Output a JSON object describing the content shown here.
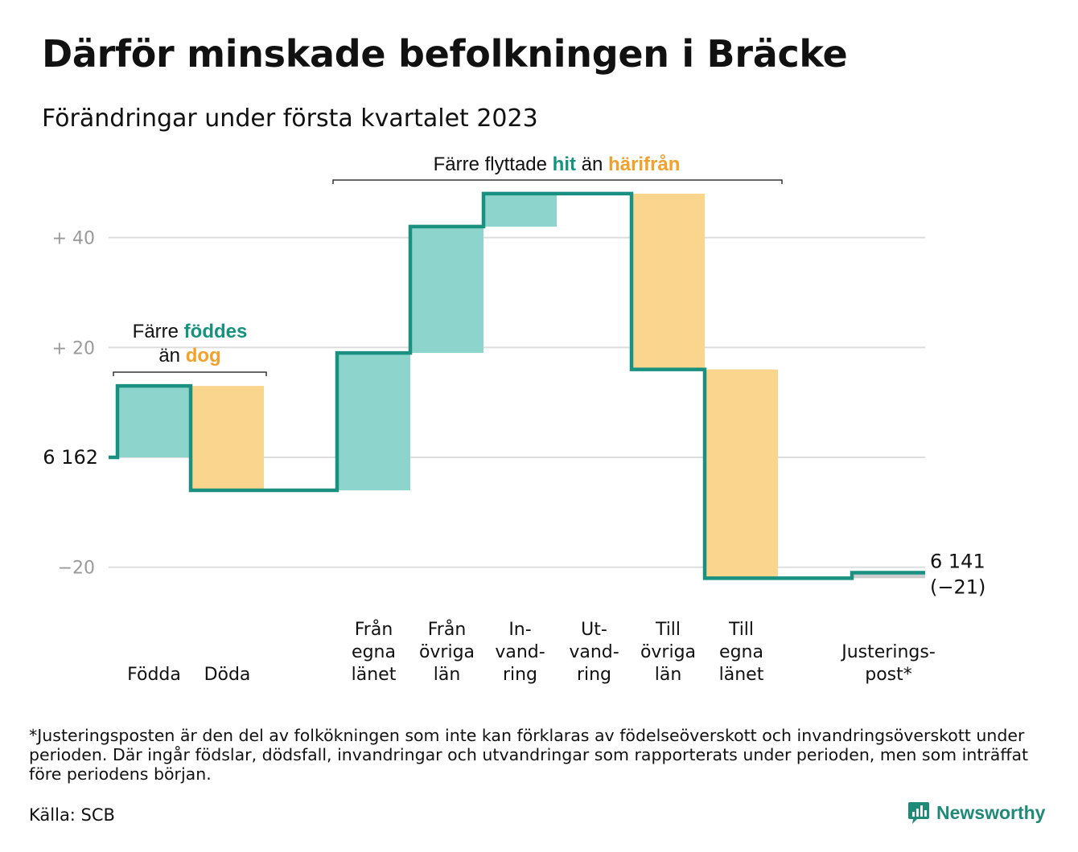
{
  "header": {
    "title": "Därför minskade befolkningen i Bräcke",
    "subtitle": "Förändringar under första kvartalet 2023"
  },
  "chart_data": {
    "type": "waterfall",
    "start_value": 6162,
    "start_label": "6 162",
    "end_value": 6141,
    "end_label": "6 141",
    "end_change_label": "(−21)",
    "y_ticks": [
      {
        "value": 40,
        "label": "+ 40"
      },
      {
        "value": 20,
        "label": "+ 20"
      },
      {
        "value": 0,
        "label": ""
      },
      {
        "value": -20,
        "label": "−20"
      }
    ],
    "ylim": [
      -22,
      48
    ],
    "steps": [
      {
        "label_lines": [
          "Födda"
        ],
        "change": 13,
        "kind": "increase"
      },
      {
        "label_lines": [
          "Döda"
        ],
        "change": -19,
        "kind": "decrease"
      },
      {
        "label_lines": [
          "Från",
          "egna",
          "länet"
        ],
        "change": 25,
        "kind": "increase"
      },
      {
        "label_lines": [
          "Från",
          "övriga",
          "län"
        ],
        "change": 23,
        "kind": "increase"
      },
      {
        "label_lines": [
          "In-",
          "vand-",
          "ring"
        ],
        "change": 6,
        "kind": "increase"
      },
      {
        "label_lines": [
          "Ut-",
          "vand-",
          "ring"
        ],
        "change": 0,
        "kind": "decrease"
      },
      {
        "label_lines": [
          "Till",
          "övriga",
          "län"
        ],
        "change": -32,
        "kind": "decrease"
      },
      {
        "label_lines": [
          "Till",
          "egna",
          "länet"
        ],
        "change": -38,
        "kind": "decrease"
      },
      {
        "label_lines": [
          "Justerings-",
          "post*"
        ],
        "change": 1,
        "kind": "adjustment"
      }
    ],
    "annotations": [
      {
        "group": "births",
        "parts": [
          {
            "text": "Färre ",
            "style": "plain"
          },
          {
            "text": "föddes",
            "style": "increase"
          },
          {
            "text": "än ",
            "style": "plain"
          },
          {
            "text": "dog",
            "style": "decrease"
          }
        ]
      },
      {
        "group": "migration",
        "parts": [
          {
            "text": "Färre flyttade ",
            "style": "plain"
          },
          {
            "text": "hit",
            "style": "increase"
          },
          {
            "text": " än ",
            "style": "plain"
          },
          {
            "text": "härifrån",
            "style": "decrease"
          }
        ]
      }
    ],
    "colors": {
      "line": "#1a9080",
      "increase_fill": "#8dd5cc",
      "decrease_fill": "#f9d58e",
      "adjustment_fill": "#cccccc",
      "increase_text": "#15937f",
      "decrease_text": "#f2a12a",
      "grid": "#dddddd",
      "tick_text": "#9a9a9a"
    }
  },
  "footer": {
    "footnote": "*Justeringsposten är den del av folkökningen som inte kan förklaras av födelseöverskott och invandringsöverskott under perioden. Där ingår födslar, dödsfall, invandringar och utvandringar som rapporterats under perioden, men som inträffat före periodens början.",
    "source": "Källa: SCB",
    "brand": "Newsworthy",
    "logo_icon": "bar-chart-bubble-icon"
  }
}
